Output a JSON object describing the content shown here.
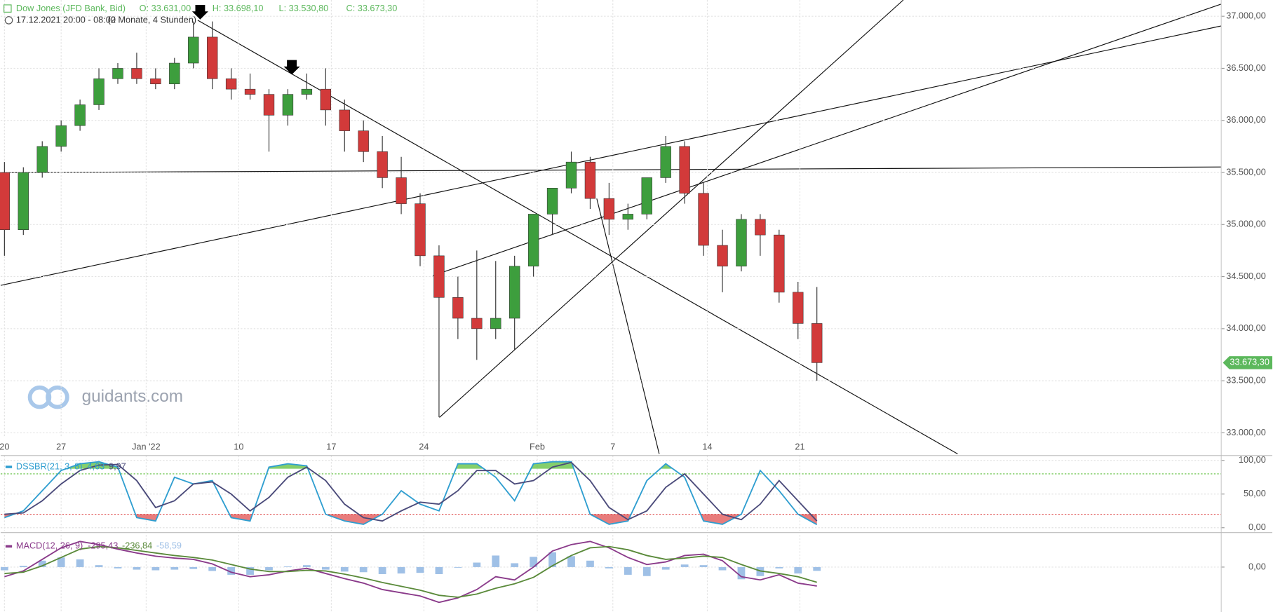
{
  "header": {
    "instrument": "Dow Jones (JFD Bank, Bid)",
    "open": "O: 33.631,00",
    "high": "H: 33.698,10",
    "low": "L: 33.530,80",
    "close": "C: 33.673,30",
    "range": "17.12.2021 20:00 - 08:00",
    "period": "(2 Monate, 4 Stunden)",
    "watermark": "guidants.com"
  },
  "chart_data": [
    {
      "type": "candlestick",
      "up_color": "#3d9e3d",
      "down_color": "#d23a3a",
      "open": [
        35500,
        34950,
        35500,
        35750,
        35950,
        36150,
        36400,
        36500,
        36400,
        36350,
        36550,
        36800,
        36400,
        36300,
        36250,
        36050,
        36250,
        36300,
        36100,
        35900,
        35700,
        35450,
        35200,
        34700,
        34300,
        34100,
        34000,
        34100,
        34600,
        35100,
        35350,
        35600,
        35250,
        35050,
        35100,
        35450,
        35750,
        35300,
        34800,
        34600,
        35050,
        34900,
        34350,
        34050
      ],
      "high": [
        35600,
        35550,
        35800,
        36000,
        36200,
        36500,
        36550,
        36650,
        36500,
        36600,
        36950,
        36950,
        36500,
        36450,
        36300,
        36300,
        36450,
        36500,
        36200,
        36000,
        35850,
        35650,
        35300,
        34800,
        34500,
        34750,
        34650,
        34700,
        35100,
        35350,
        35700,
        35650,
        35400,
        35200,
        35450,
        35850,
        35800,
        35400,
        34950,
        35100,
        35100,
        34950,
        34450,
        34400
      ],
      "low": [
        34700,
        34900,
        35450,
        35700,
        35900,
        36100,
        36350,
        36350,
        36300,
        36300,
        36500,
        36300,
        36200,
        36200,
        35700,
        35950,
        36200,
        35950,
        35700,
        35600,
        35350,
        35100,
        34600,
        33150,
        33900,
        33700,
        33900,
        33800,
        34500,
        34900,
        35300,
        35150,
        34900,
        34950,
        35050,
        35400,
        35200,
        34700,
        34350,
        34550,
        34700,
        34250,
        33900,
        33500
      ],
      "close": [
        34950,
        35500,
        35750,
        35950,
        36150,
        36400,
        36500,
        36400,
        36350,
        36550,
        36800,
        36400,
        36300,
        36250,
        36050,
        36250,
        36300,
        36100,
        35900,
        35700,
        35450,
        35200,
        34700,
        34300,
        34100,
        34000,
        34100,
        34600,
        35100,
        35350,
        35600,
        35250,
        35050,
        35100,
        35450,
        35750,
        35300,
        34800,
        34600,
        35050,
        34900,
        34350,
        34050,
        33673.3
      ],
      "last": {
        "value": 33673.3,
        "label": "33.673,30"
      },
      "xlim": [
        -0.2,
        64.4
      ],
      "xticks": [
        {
          "value": 0,
          "label": "20"
        },
        {
          "value": 3,
          "label": "27"
        },
        {
          "value": 7.5,
          "label": "Jan '22"
        },
        {
          "value": 12.4,
          "label": "10"
        },
        {
          "value": 17.3,
          "label": "17"
        },
        {
          "value": 22.2,
          "label": "24"
        },
        {
          "value": 28.2,
          "label": "Feb"
        },
        {
          "value": 32.2,
          "label": "7"
        },
        {
          "value": 37.2,
          "label": "14"
        },
        {
          "value": 42.1,
          "label": "21"
        }
      ],
      "ylim": [
        32953,
        37156
      ],
      "yticks": [
        {
          "value": 33000,
          "label": "33.000,00"
        },
        {
          "value": 33500,
          "label": "33.500,00"
        },
        {
          "value": 34000,
          "label": "34.000,00"
        },
        {
          "value": 34500,
          "label": "34.500,00"
        },
        {
          "value": 35000,
          "label": "35.000,00"
        },
        {
          "value": 35500,
          "label": "35.500,00"
        },
        {
          "value": 36000,
          "label": "36.000,00"
        },
        {
          "value": 36500,
          "label": "36.500,00"
        },
        {
          "value": 37000,
          "label": "37.000,00"
        }
      ]
    },
    {
      "type": "oscillator",
      "title": "DSSBR(21, 3, 8)",
      "value_labels": [
        "4,63",
        "9,97"
      ],
      "xlim": [
        -0.2,
        64.4
      ],
      "ylim": [
        -4.8,
        107.2
      ],
      "yticks": [
        {
          "value": 0,
          "label": "0,00"
        },
        {
          "value": 50,
          "label": "50,00"
        },
        {
          "value": 100,
          "label": "100,00"
        }
      ],
      "levels": [
        {
          "value": 80,
          "color": "#5cbf3a"
        },
        {
          "value": 20,
          "color": "#e05050"
        }
      ],
      "series": [
        {
          "color": "#2f9ed0",
          "values": [
            15,
            25,
            55,
            85,
            95,
            98,
            90,
            15,
            10,
            75,
            65,
            70,
            15,
            10,
            90,
            95,
            92,
            20,
            10,
            5,
            20,
            55,
            35,
            25,
            95,
            95,
            75,
            40,
            95,
            98,
            98,
            20,
            5,
            10,
            70,
            95,
            75,
            10,
            5,
            20,
            85,
            55,
            20,
            4.63
          ]
        },
        {
          "color": "#4a4a7a",
          "values": [
            20,
            22,
            40,
            65,
            85,
            93,
            94,
            70,
            30,
            40,
            65,
            68,
            50,
            25,
            45,
            75,
            90,
            70,
            35,
            15,
            10,
            25,
            38,
            35,
            55,
            85,
            85,
            65,
            70,
            90,
            97,
            70,
            30,
            12,
            25,
            60,
            80,
            50,
            20,
            12,
            35,
            70,
            40,
            9.97
          ]
        }
      ]
    },
    {
      "type": "macd",
      "title": "MACD(12, 26, 9)",
      "value_labels": [
        "-295,43",
        "-236,84",
        "-58,59"
      ],
      "xlim": [
        -0.2,
        64.4
      ],
      "ylim": [
        -700,
        500
      ],
      "yticks": [
        {
          "value": 0,
          "label": "0,00"
        }
      ],
      "histogram": {
        "color": "#9fc0e6",
        "values": [
          -50,
          20,
          100,
          150,
          120,
          30,
          -20,
          -40,
          -50,
          -40,
          -30,
          -60,
          -120,
          -120,
          -50,
          10,
          30,
          -40,
          -70,
          -80,
          -110,
          -100,
          -90,
          -110,
          -10,
          70,
          180,
          60,
          160,
          230,
          170,
          100,
          -20,
          -120,
          -140,
          -40,
          40,
          30,
          -50,
          -190,
          -140,
          -20,
          -100,
          -58.59
        ]
      },
      "series": [
        {
          "color": "#8a3a8a",
          "values": [
            -150,
            -60,
            120,
            300,
            400,
            350,
            280,
            220,
            170,
            140,
            120,
            50,
            -80,
            -150,
            -120,
            -60,
            -20,
            -100,
            -180,
            -250,
            -350,
            -400,
            -450,
            -550,
            -480,
            -350,
            -150,
            -200,
            0,
            250,
            350,
            400,
            300,
            150,
            40,
            80,
            180,
            200,
            100,
            -150,
            -200,
            -120,
            -250,
            -295.43
          ]
        },
        {
          "color": "#5a8a3a",
          "values": [
            -100,
            -80,
            20,
            150,
            280,
            320,
            300,
            260,
            220,
            180,
            150,
            110,
            40,
            -30,
            -70,
            -70,
            -50,
            -60,
            -110,
            -170,
            -240,
            -300,
            -360,
            -440,
            -470,
            -420,
            -330,
            -260,
            -160,
            20,
            180,
            300,
            320,
            270,
            180,
            120,
            140,
            170,
            150,
            40,
            -60,
            -100,
            -150,
            -236.84
          ]
        }
      ]
    }
  ]
}
